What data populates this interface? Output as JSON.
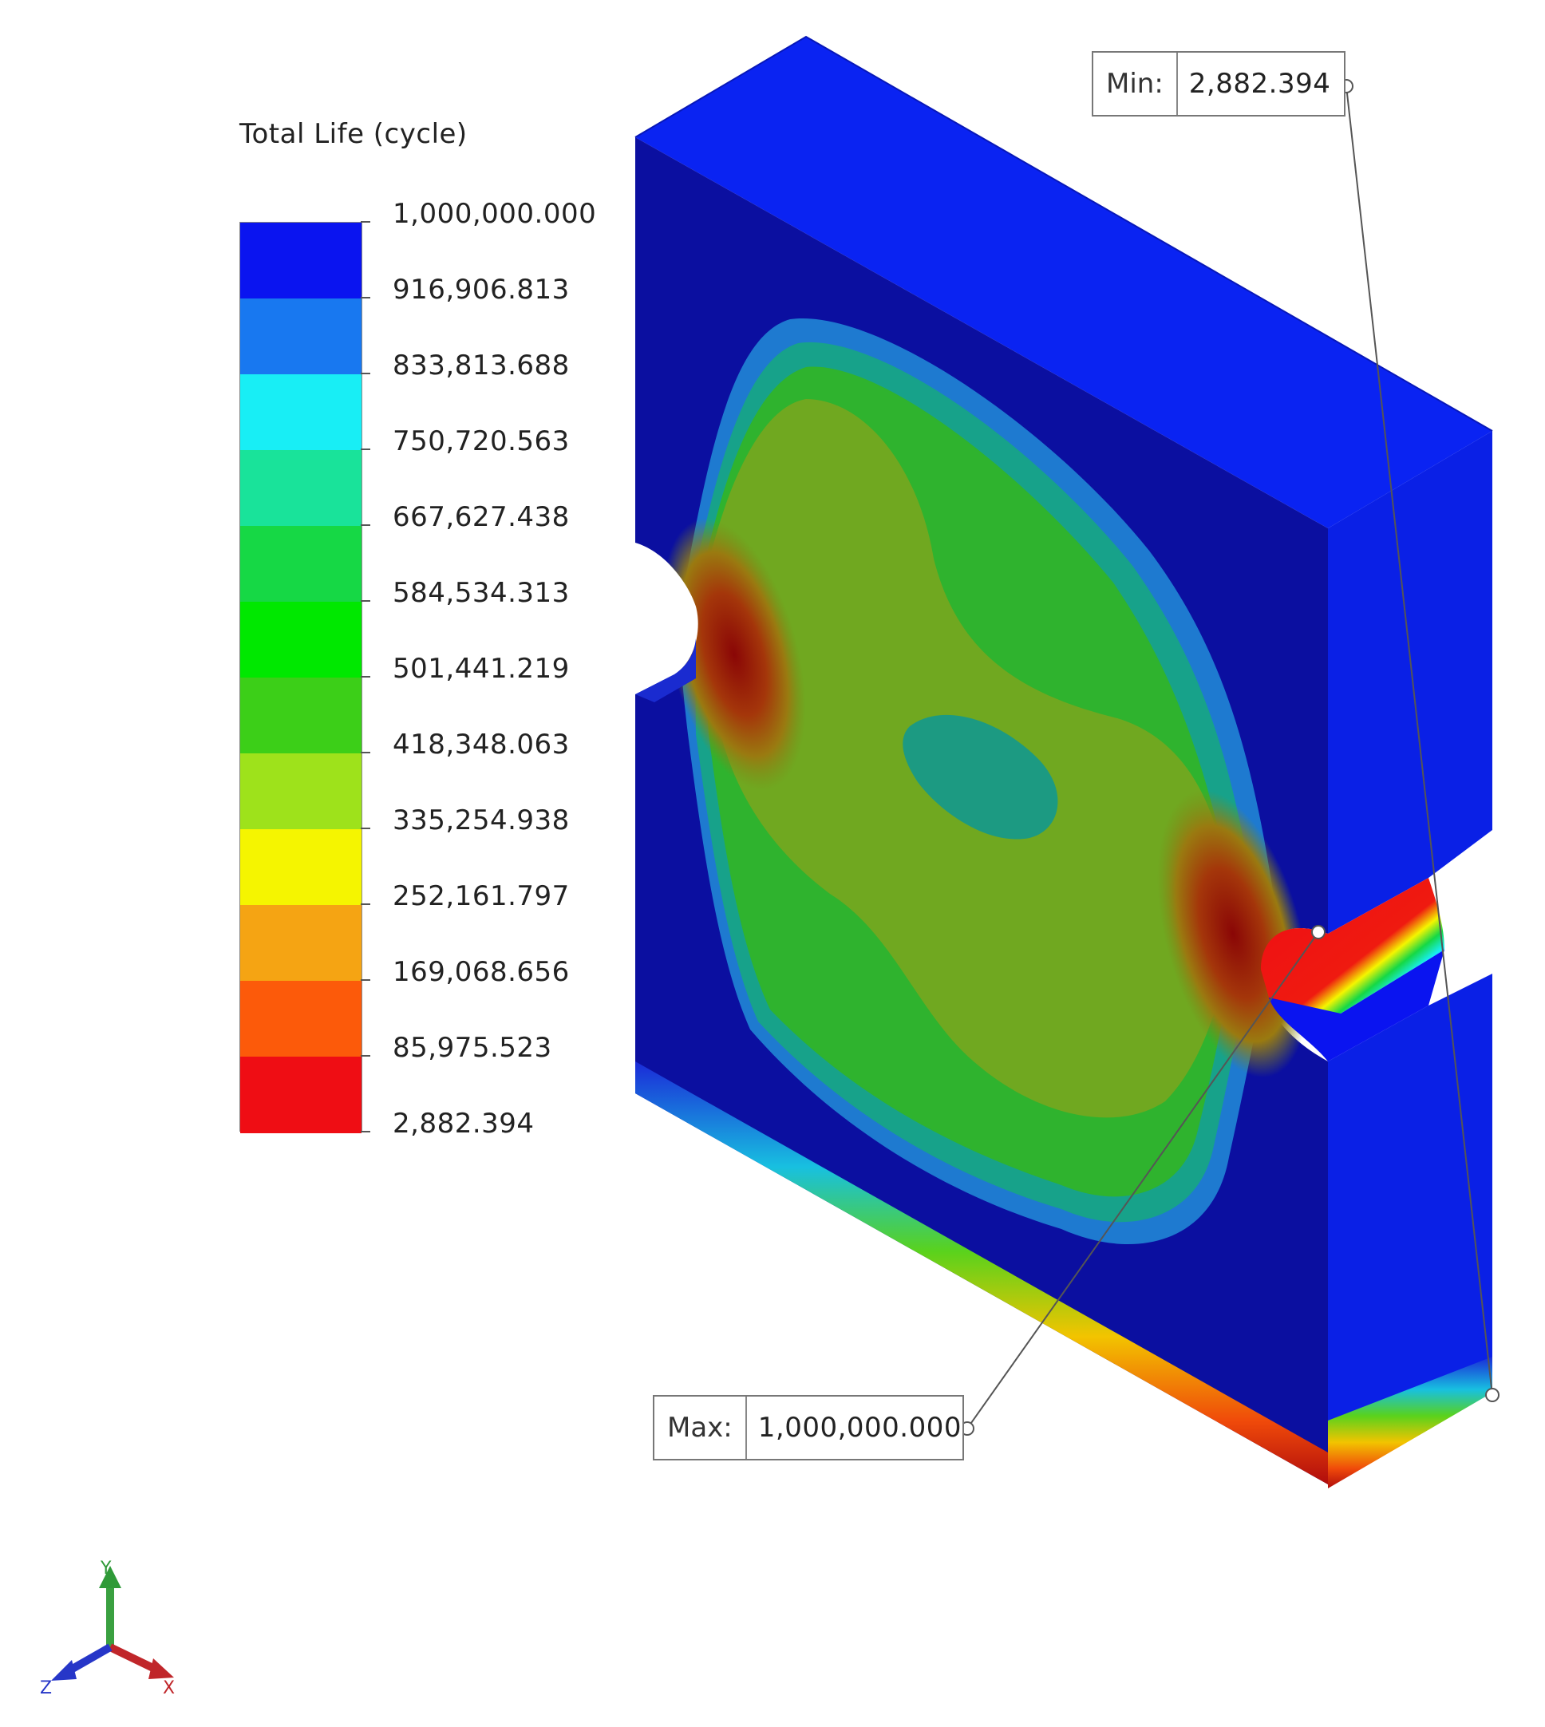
{
  "legend": {
    "title": "Total Life (cycle)",
    "labels": [
      "1,000,000.000",
      "916,906.813",
      "833,813.688",
      "750,720.563",
      "667,627.438",
      "584,534.313",
      "501,441.219",
      "418,348.063",
      "335,254.938",
      "252,161.797",
      "169,068.656",
      "85,975.523",
      "2,882.394"
    ],
    "band_colors": [
      "#0a14f0",
      "#1878f0",
      "#18eef5",
      "#19e39a",
      "#16d845",
      "#00e800",
      "#3ccf18",
      "#9ee21b",
      "#f5f500",
      "#f5a413",
      "#fc5a0a",
      "#ef0d14"
    ]
  },
  "probes": {
    "min": {
      "key": "Min:",
      "value": "2,882.394"
    },
    "max": {
      "key": "Max:",
      "value": "1,000,000.000"
    }
  },
  "triad": {
    "y": "Y",
    "x": "X",
    "z": "Z"
  }
}
